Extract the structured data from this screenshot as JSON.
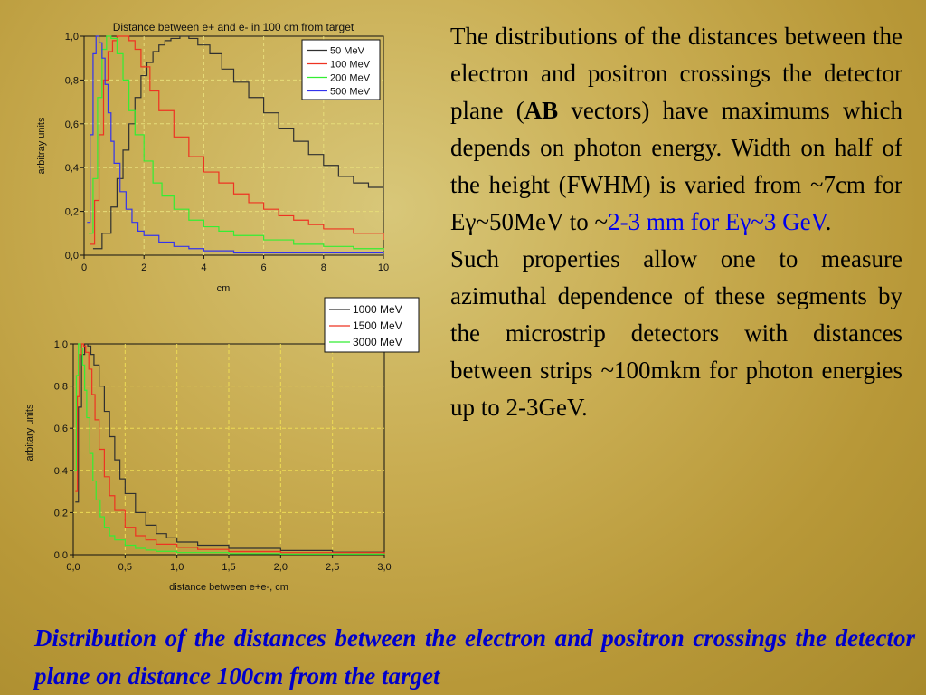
{
  "right_text": {
    "p1_a": "The distributions of the distances between the electron and positron crossings the detector plane (",
    "p1_bold": "AB",
    "p1_b": " vectors) have maximums which depends on  photon energy. Width on half of the height (FWHM) is varied from ~7cm for Eγ~50MeV to ~",
    "p1_blue": "2-3  mm for Eγ~3 GeV",
    "p1_end": ".",
    "p2": "Such properties allow one to measure azimuthal dependence of these segments by the microstrip detectors with distances between strips ~100mkm for photon energies up to 2-3GeV."
  },
  "caption": "Distribution of the distances between the electron and positron crossings the detector plane on distance 100cm from the target",
  "chart_data": [
    {
      "type": "line",
      "title": "Distance between e+ and e- in 100 cm from target",
      "xlabel": "cm",
      "ylabel": "arbitray units",
      "xlim": [
        0,
        10
      ],
      "ylim": [
        0,
        1.0
      ],
      "x_ticks": [
        "0",
        "2",
        "4",
        "6",
        "8",
        "10"
      ],
      "y_ticks": [
        "0,0",
        "0,2",
        "0,4",
        "0,6",
        "0,8",
        "1,0"
      ],
      "grid": true,
      "legend_position": "top-right",
      "series": [
        {
          "name": "50 MeV",
          "color": "#303030",
          "x": [
            0.3,
            0.6,
            0.9,
            1.1,
            1.3,
            1.5,
            1.7,
            1.9,
            2.1,
            2.3,
            2.5,
            2.7,
            2.9,
            3.2,
            3.5,
            3.8,
            4.2,
            4.6,
            5.0,
            5.5,
            6.0,
            6.5,
            7.0,
            7.5,
            8.0,
            8.5,
            9.0,
            9.5,
            10.0
          ],
          "y": [
            0.03,
            0.1,
            0.22,
            0.35,
            0.48,
            0.6,
            0.72,
            0.82,
            0.88,
            0.93,
            0.96,
            0.98,
            0.99,
            1.0,
            0.99,
            0.96,
            0.92,
            0.85,
            0.79,
            0.72,
            0.65,
            0.58,
            0.52,
            0.46,
            0.41,
            0.36,
            0.33,
            0.31,
            0.28
          ]
        },
        {
          "name": "100 MeV",
          "color": "#ee3322",
          "x": [
            0.2,
            0.35,
            0.5,
            0.65,
            0.8,
            0.95,
            1.1,
            1.3,
            1.5,
            1.7,
            1.9,
            2.2,
            2.5,
            3.0,
            3.5,
            4.0,
            4.5,
            5.0,
            5.5,
            6.0,
            6.5,
            7.0,
            7.5,
            8.0,
            9.0,
            10.0
          ],
          "y": [
            0.05,
            0.25,
            0.55,
            0.8,
            0.93,
            0.98,
            1.0,
            1.0,
            0.98,
            0.94,
            0.86,
            0.75,
            0.66,
            0.54,
            0.45,
            0.38,
            0.33,
            0.28,
            0.24,
            0.21,
            0.18,
            0.16,
            0.14,
            0.12,
            0.1,
            0.07
          ]
        },
        {
          "name": "200 MeV",
          "color": "#33ee33",
          "x": [
            0.15,
            0.3,
            0.45,
            0.6,
            0.75,
            0.9,
            1.1,
            1.3,
            1.5,
            1.7,
            2.0,
            2.3,
            2.6,
            3.0,
            3.5,
            4.0,
            4.5,
            5.0,
            6.0,
            7.0,
            8.0,
            9.0,
            10.0
          ],
          "y": [
            0.1,
            0.35,
            0.72,
            0.94,
            1.0,
            0.99,
            0.92,
            0.8,
            0.66,
            0.55,
            0.43,
            0.33,
            0.27,
            0.21,
            0.16,
            0.13,
            0.11,
            0.09,
            0.07,
            0.05,
            0.04,
            0.03,
            0.02
          ]
        },
        {
          "name": "500 MeV",
          "color": "#3333ee",
          "x": [
            0.1,
            0.2,
            0.3,
            0.4,
            0.5,
            0.6,
            0.7,
            0.8,
            0.9,
            1.0,
            1.2,
            1.4,
            1.6,
            1.8,
            2.0,
            2.5,
            3.0,
            3.5,
            4.0,
            5.0,
            6.0,
            8.0,
            10.0
          ],
          "y": [
            0.15,
            0.55,
            0.92,
            1.0,
            0.97,
            0.9,
            0.78,
            0.65,
            0.52,
            0.42,
            0.29,
            0.21,
            0.15,
            0.11,
            0.09,
            0.06,
            0.04,
            0.03,
            0.02,
            0.01,
            0.01,
            0.01,
            0.005
          ]
        }
      ]
    },
    {
      "type": "line",
      "title": "",
      "xlabel": "distance between e+e-, cm",
      "ylabel": "arbitary units",
      "xlim": [
        0,
        3.0
      ],
      "ylim": [
        0,
        1.0
      ],
      "x_ticks": [
        "0,0",
        "0,5",
        "1,0",
        "1,5",
        "2,0",
        "2,5",
        "3,0"
      ],
      "y_ticks": [
        "0,0",
        "0,2",
        "0,4",
        "0,6",
        "0,8",
        "1,0"
      ],
      "grid": true,
      "legend_position": "top-right",
      "series": [
        {
          "name": "1000 MeV",
          "color": "#303030",
          "x": [
            0.02,
            0.05,
            0.08,
            0.11,
            0.14,
            0.17,
            0.2,
            0.25,
            0.3,
            0.35,
            0.4,
            0.45,
            0.5,
            0.6,
            0.7,
            0.8,
            0.9,
            1.0,
            1.2,
            1.5,
            2.0,
            2.5,
            3.0
          ],
          "y": [
            0.25,
            0.7,
            0.95,
            1.0,
            0.99,
            0.95,
            0.9,
            0.8,
            0.68,
            0.56,
            0.45,
            0.36,
            0.29,
            0.2,
            0.14,
            0.1,
            0.08,
            0.06,
            0.045,
            0.03,
            0.02,
            0.012,
            0.008
          ]
        },
        {
          "name": "1500 MeV",
          "color": "#ee3322",
          "x": [
            0.02,
            0.04,
            0.06,
            0.08,
            0.1,
            0.12,
            0.15,
            0.18,
            0.21,
            0.25,
            0.3,
            0.35,
            0.4,
            0.5,
            0.6,
            0.7,
            0.8,
            1.0,
            1.2,
            1.5,
            2.0,
            3.0
          ],
          "y": [
            0.3,
            0.75,
            0.95,
            1.0,
            0.99,
            0.96,
            0.88,
            0.76,
            0.64,
            0.5,
            0.37,
            0.28,
            0.21,
            0.13,
            0.09,
            0.07,
            0.05,
            0.035,
            0.025,
            0.015,
            0.01,
            0.005
          ]
        },
        {
          "name": "3000 MeV",
          "color": "#33ee33",
          "x": [
            0.01,
            0.03,
            0.05,
            0.07,
            0.09,
            0.11,
            0.13,
            0.16,
            0.19,
            0.22,
            0.26,
            0.3,
            0.35,
            0.4,
            0.5,
            0.6,
            0.7,
            0.8,
            1.0,
            1.5,
            2.0,
            3.0
          ],
          "y": [
            0.4,
            0.85,
            1.0,
            0.98,
            0.9,
            0.78,
            0.65,
            0.48,
            0.35,
            0.26,
            0.18,
            0.13,
            0.09,
            0.07,
            0.045,
            0.03,
            0.022,
            0.016,
            0.01,
            0.005,
            0.003,
            0.001
          ]
        }
      ]
    }
  ]
}
